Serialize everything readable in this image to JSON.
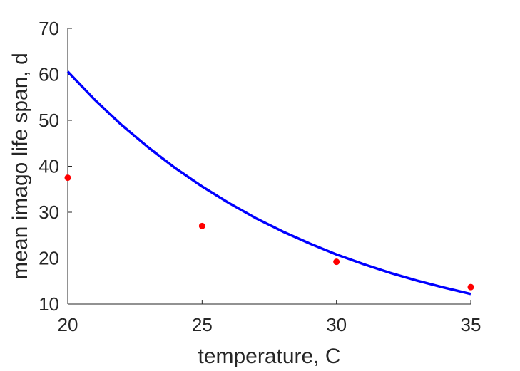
{
  "chart_data": {
    "type": "scatter",
    "xlabel": "temperature, C",
    "ylabel": "mean imago life span, d",
    "xlim": [
      20,
      35
    ],
    "ylim": [
      10,
      70
    ],
    "xticks": [
      20,
      25,
      30,
      35
    ],
    "yticks": [
      10,
      20,
      30,
      40,
      50,
      60,
      70
    ],
    "grid": false,
    "series": [
      {
        "type": "scatter",
        "color": "#ff0000",
        "x": [
          20,
          25,
          30,
          35
        ],
        "y": [
          37.5,
          27,
          19.2,
          13.7
        ]
      },
      {
        "type": "line",
        "color": "#0000ff",
        "x": [
          20,
          21,
          22,
          23,
          24,
          25,
          26,
          27,
          28,
          29,
          30,
          31,
          32,
          33,
          34,
          35
        ],
        "y": [
          60.6,
          54.5,
          49.0,
          44.1,
          39.6,
          35.6,
          32.0,
          28.7,
          25.8,
          23.2,
          20.8,
          18.7,
          16.8,
          15.1,
          13.6,
          12.2
        ]
      }
    ]
  }
}
